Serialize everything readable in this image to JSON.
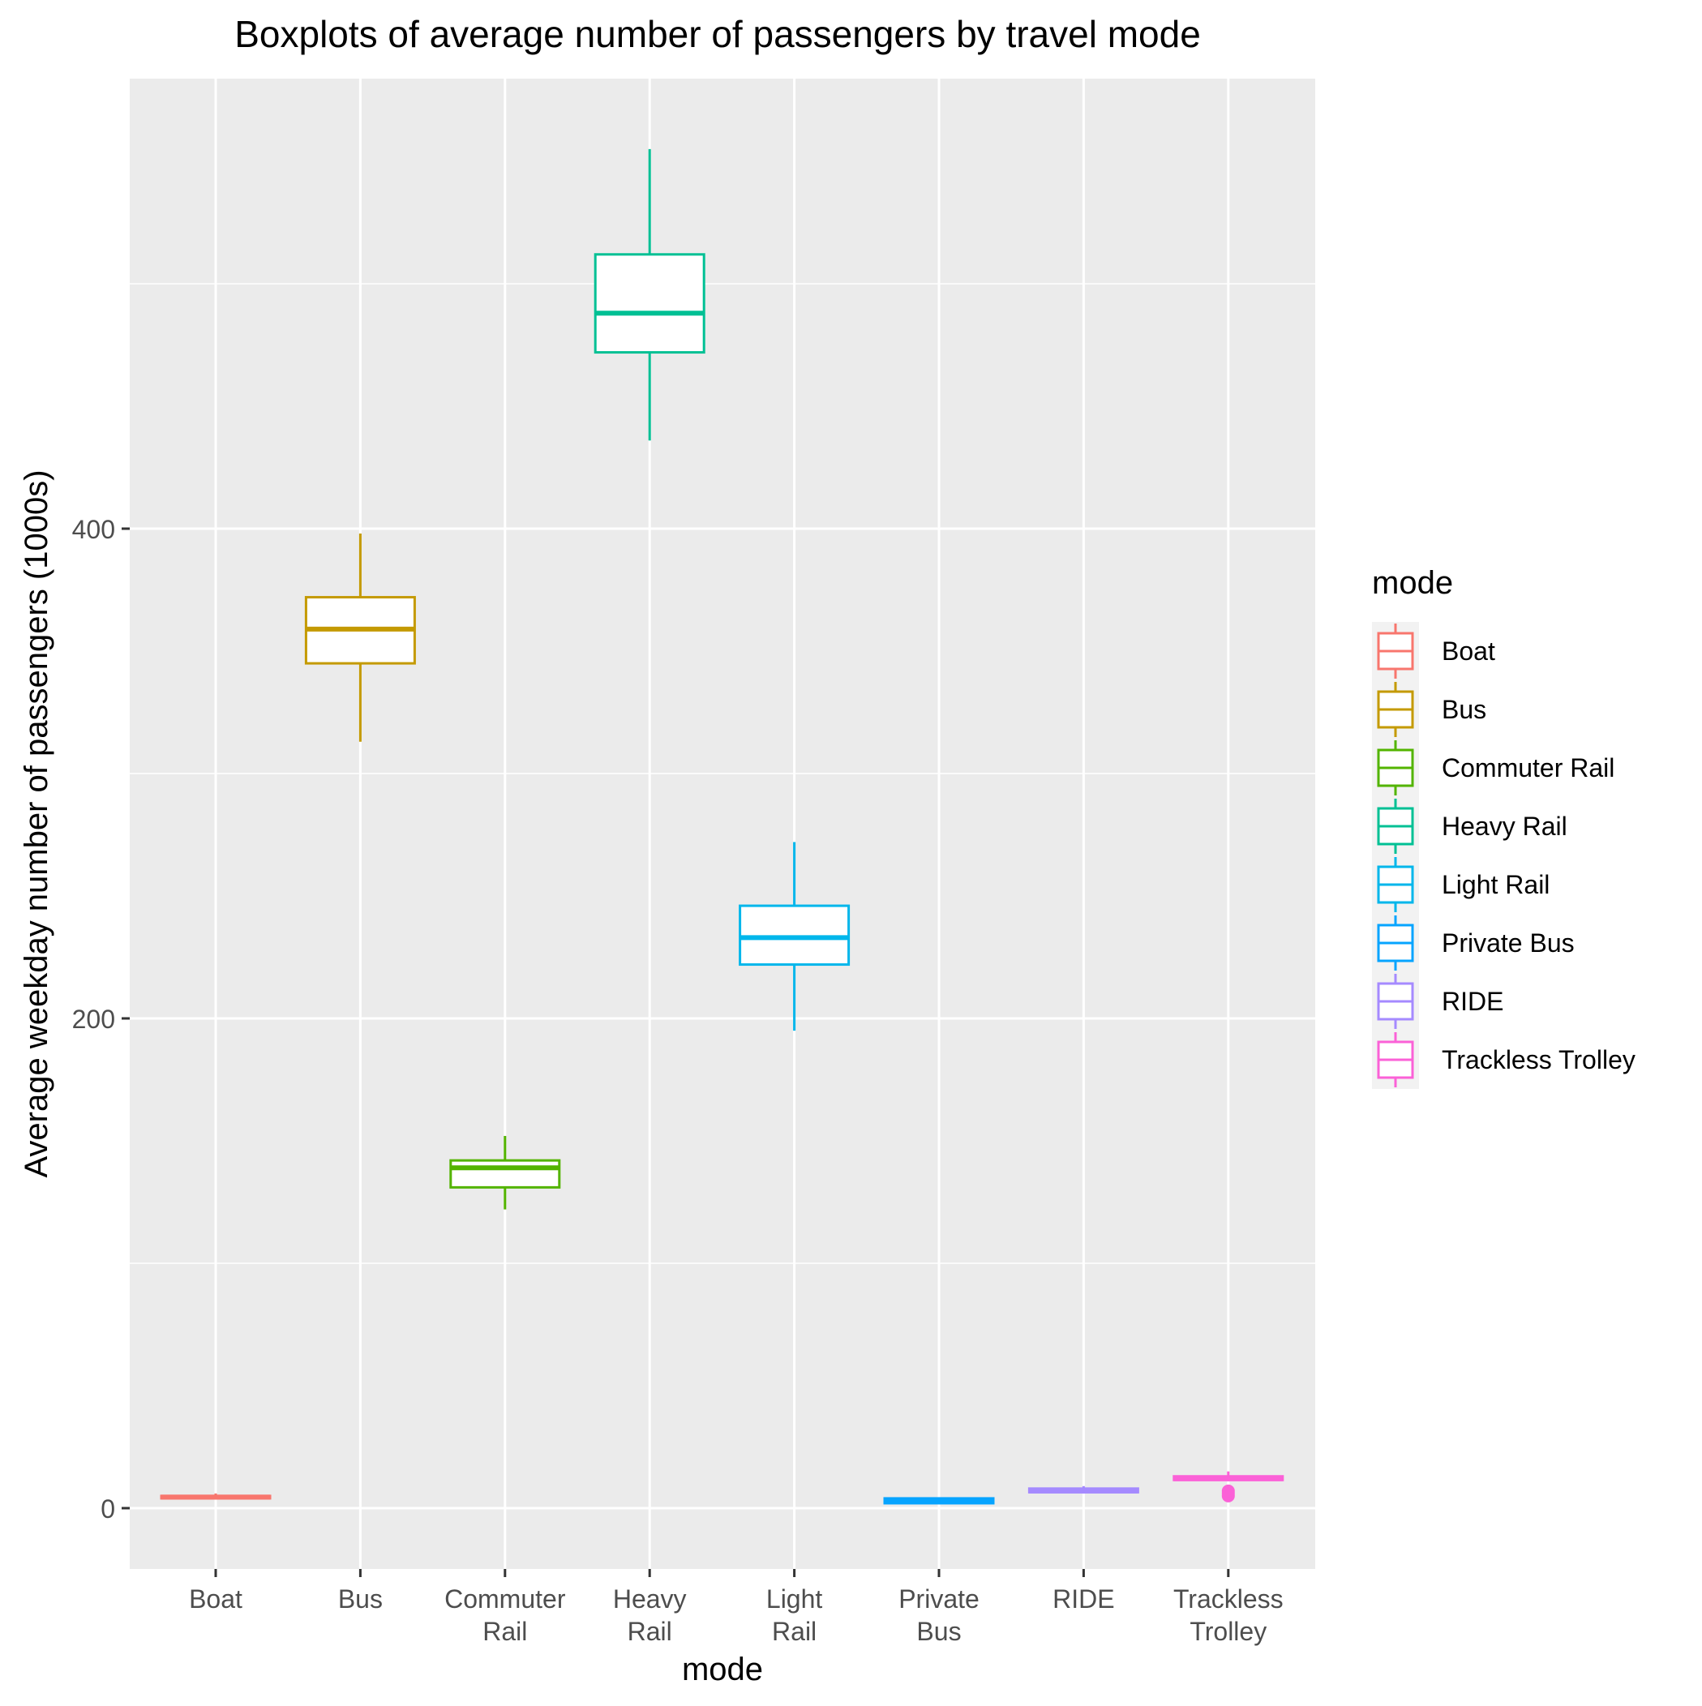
{
  "chart_data": {
    "type": "box",
    "title": "Boxplots of average number of passengers by travel mode",
    "xlabel": "mode",
    "ylabel": "Average weekday number of passengers (1000s)",
    "ylim": [
      -25,
      582
    ],
    "yticks": [
      0,
      200,
      400
    ],
    "grid": true,
    "legend": {
      "title": "mode",
      "position": "right"
    },
    "categories": [
      {
        "name": "Boat",
        "label_lines": [
          "Boat"
        ],
        "color": "#F8766D",
        "whisker_low": 4,
        "q1": 4,
        "median": 4.5,
        "q3": 5,
        "whisker_high": 6,
        "outliers": []
      },
      {
        "name": "Bus",
        "label_lines": [
          "Bus"
        ],
        "color": "#C49A00",
        "whisker_low": 313,
        "q1": 345,
        "median": 359,
        "q3": 372,
        "whisker_high": 398,
        "outliers": []
      },
      {
        "name": "Commuter Rail",
        "label_lines": [
          "Commuter",
          "Rail"
        ],
        "color": "#53B400",
        "whisker_low": 122,
        "q1": 131,
        "median": 139,
        "q3": 142,
        "whisker_high": 152,
        "outliers": []
      },
      {
        "name": "Heavy Rail",
        "label_lines": [
          "Heavy",
          "Rail"
        ],
        "color": "#00C094",
        "whisker_low": 436,
        "q1": 472,
        "median": 488,
        "q3": 512,
        "whisker_high": 555,
        "outliers": []
      },
      {
        "name": "Light Rail",
        "label_lines": [
          "Light",
          "Rail"
        ],
        "color": "#00B6EB",
        "whisker_low": 195,
        "q1": 222,
        "median": 233,
        "q3": 246,
        "whisker_high": 272,
        "outliers": []
      },
      {
        "name": "Private Bus",
        "label_lines": [
          "Private",
          "Bus"
        ],
        "color": "#06A4FF",
        "whisker_low": 2,
        "q1": 2,
        "median": 3,
        "q3": 4,
        "whisker_high": 4,
        "outliers": []
      },
      {
        "name": "RIDE",
        "label_lines": [
          "RIDE"
        ],
        "color": "#A58AFF",
        "whisker_low": 6,
        "q1": 6.5,
        "median": 7,
        "q3": 8,
        "whisker_high": 9,
        "outliers": []
      },
      {
        "name": "Trackless Trolley",
        "label_lines": [
          "Trackless",
          "Trolley"
        ],
        "color": "#FB61D7",
        "whisker_low": 11,
        "q1": 11.5,
        "median": 12,
        "q3": 13,
        "whisker_high": 15,
        "outliers": [
          5,
          6,
          7
        ]
      }
    ]
  }
}
